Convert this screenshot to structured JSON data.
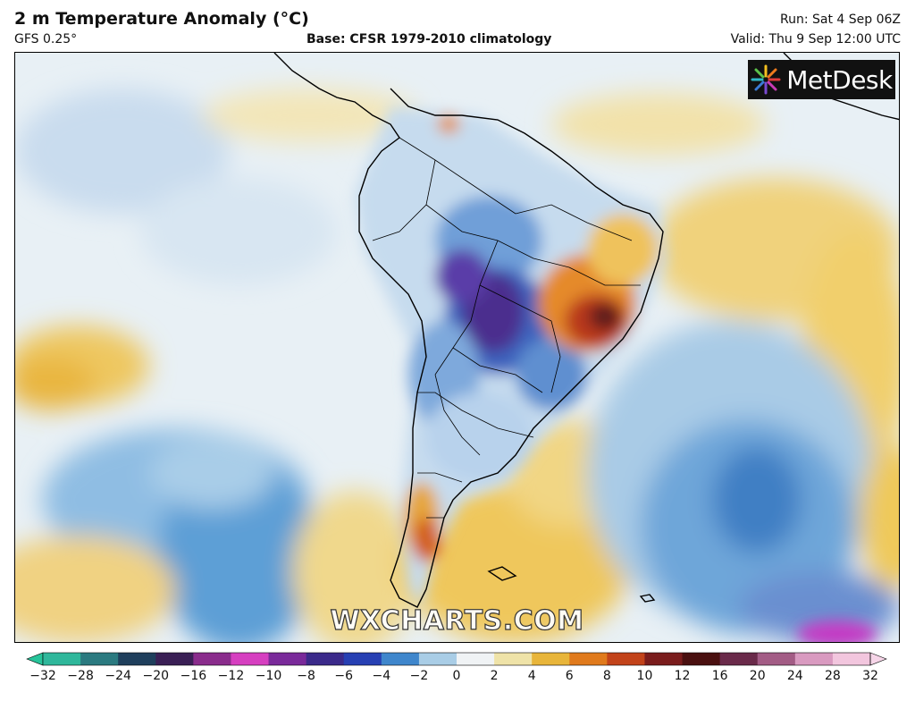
{
  "header": {
    "title": "2 m Temperature Anomaly (°C)",
    "model": "GFS 0.25°",
    "base": "Base: CFSR 1979-2010 climatology",
    "run": "Run: Sat 4 Sep 06Z",
    "valid": "Valid: Thu 9 Sep 12:00 UTC"
  },
  "logo": {
    "text": "MetDesk",
    "icon": "starburst-icon"
  },
  "watermark": "WXCHARTS.COM",
  "colorbar": {
    "ticks": [
      "−32",
      "−28",
      "−24",
      "−20",
      "−16",
      "−12",
      "−10",
      "−8",
      "−6",
      "−4",
      "−2",
      "0",
      "2",
      "4",
      "6",
      "8",
      "10",
      "12",
      "16",
      "20",
      "24",
      "28",
      "32"
    ],
    "colors": [
      "#2fb79b",
      "#2b7a80",
      "#1f3f5c",
      "#3a1f55",
      "#8a2c8c",
      "#d63fc0",
      "#7a2a9a",
      "#3b2a8a",
      "#2740b3",
      "#3f86cc",
      "#a9cde6",
      "#f0f3f5",
      "#efe3a8",
      "#e8b53a",
      "#e07a1c",
      "#c2431a",
      "#7a1c1c",
      "#4a1010",
      "#6a2a4a",
      "#a35c85",
      "#d99ac0",
      "#f2c6de"
    ],
    "end_colors": [
      "#27c49a",
      "#f6d5e8"
    ]
  }
}
